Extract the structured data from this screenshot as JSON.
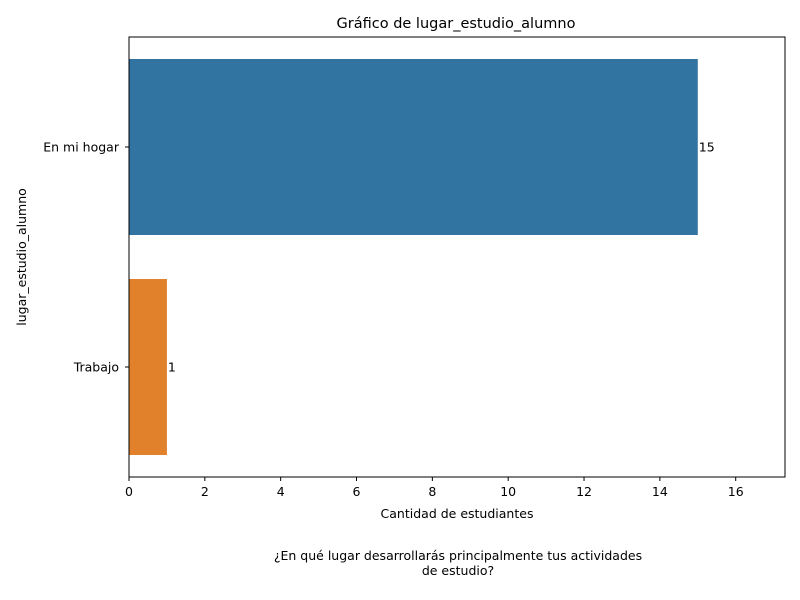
{
  "chart_data": {
    "type": "bar",
    "orientation": "horizontal",
    "title": "Gráfico de lugar_estudio_alumno",
    "xlabel": "Cantidad de estudiantes",
    "ylabel": "lugar_estudio_alumno",
    "categories": [
      "En mi hogar",
      "Trabajo"
    ],
    "values": [
      15,
      1
    ],
    "data_labels": [
      "15",
      "1"
    ],
    "colors": [
      "#3274a1",
      "#e1812c"
    ],
    "xlim": [
      0,
      17.3
    ],
    "xticks": [
      0,
      2,
      4,
      6,
      8,
      10,
      12,
      14,
      16
    ],
    "grid": false,
    "legend": "none"
  },
  "caption": {
    "line1": "¿En qué lugar desarrollarás principalmente tus actividades",
    "line2": "de estudio?"
  }
}
